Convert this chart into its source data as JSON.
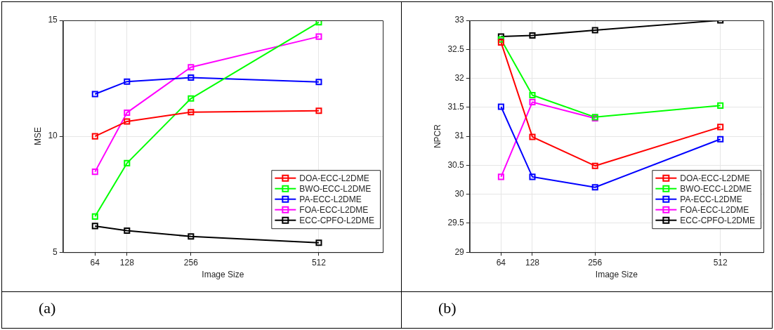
{
  "chart_data": [
    {
      "type": "line",
      "xlabel": "Image Size",
      "ylabel": "MSE",
      "x": [
        64,
        128,
        256,
        512
      ],
      "xlim": [
        0,
        640
      ],
      "xticks": [
        64,
        128,
        256,
        512
      ],
      "ylim": [
        5,
        15
      ],
      "yticks": [
        5,
        10,
        15
      ],
      "grid": true,
      "legend": "bottom right",
      "marker": "square",
      "annotations": [
        "(a)"
      ],
      "series": [
        {
          "name": "DOA-ECC-L2DME",
          "color": "#ff0000",
          "values": [
            10.0,
            10.64,
            11.04,
            11.1
          ]
        },
        {
          "name": "BWO-ECC-L2DME",
          "color": "#00ff00",
          "values": [
            6.54,
            8.84,
            11.63,
            14.92
          ]
        },
        {
          "name": "PA-ECC-L2DME",
          "color": "#0000ff",
          "values": [
            11.82,
            12.36,
            12.53,
            12.34
          ]
        },
        {
          "name": "FOA-ECC-L2DME",
          "color": "#ff00ff",
          "values": [
            8.47,
            11.02,
            12.98,
            14.3
          ]
        },
        {
          "name": "ECC-CPFO-L2DME",
          "color": "#000000",
          "values": [
            6.13,
            5.93,
            5.68,
            5.41
          ]
        }
      ]
    },
    {
      "type": "line",
      "xlabel": "Image Size",
      "ylabel": "NPCR",
      "x": [
        64,
        128,
        256,
        512
      ],
      "xlim": [
        0,
        600
      ],
      "xticks": [
        64,
        128,
        256,
        512
      ],
      "ylim": [
        29,
        33
      ],
      "yticks": [
        29,
        29.5,
        30,
        30.5,
        31,
        31.5,
        32,
        32.5,
        33
      ],
      "grid": true,
      "legend": "bottom right",
      "marker": "square",
      "annotations": [
        "(b)"
      ],
      "series": [
        {
          "name": "DOA-ECC-L2DME",
          "color": "#ff0000",
          "values": [
            32.62,
            30.99,
            30.49,
            31.16
          ]
        },
        {
          "name": "BWO-ECC-L2DME",
          "color": "#00ff00",
          "values": [
            32.67,
            31.71,
            31.33,
            31.53
          ]
        },
        {
          "name": "PA-ECC-L2DME",
          "color": "#0000ff",
          "values": [
            31.51,
            30.3,
            30.12,
            30.95
          ]
        },
        {
          "name": "FOA-ECC-L2DME",
          "color": "#ff00ff",
          "values": [
            30.3,
            31.59,
            31.31,
            null
          ]
        },
        {
          "name": "ECC-CPFO-L2DME",
          "color": "#000000",
          "values": [
            32.72,
            32.74,
            32.83,
            33.0
          ]
        }
      ]
    }
  ]
}
